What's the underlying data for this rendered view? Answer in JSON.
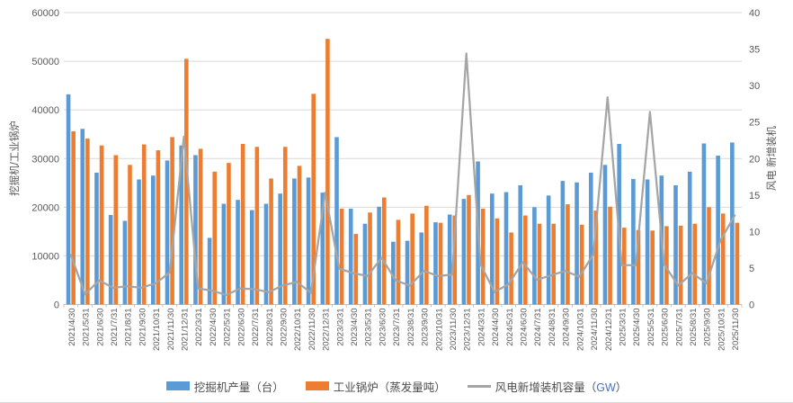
{
  "colors": {
    "excavator_blue": "#5B9BD5",
    "boiler_orange": "#ED7D31",
    "wind_gray": "#A5A5A5",
    "grid": "#D9D9D9",
    "axis_line": "#BFBFBF",
    "tick_text": "#595959",
    "legend_text": "#4d4d4d",
    "gw_blue": "#4472C4"
  },
  "legend": {
    "items": [
      {
        "label": "挖掘机产量（台）"
      },
      {
        "label": "工业锅炉（蒸发量吨）"
      },
      {
        "prefix": "风电新增装机容量（",
        "unit": "GW",
        "suffix": "）"
      }
    ]
  },
  "chart_data": {
    "type": "bar",
    "subtype": "combo bar+line, dual axis",
    "grid": true,
    "legend_position": "bottom",
    "categories": [
      "2021/4/30",
      "2021/5/31",
      "2021/6/30",
      "2021/7/31",
      "2021/8/31",
      "2021/9/30",
      "2021/10/31",
      "2021/11/30",
      "2021/12/31",
      "2022/3/31",
      "2022/4/30",
      "2022/5/31",
      "2022/6/30",
      "2022/7/31",
      "2022/8/31",
      "2022/9/30",
      "2022/10/31",
      "2022/11/30",
      "2022/12/31",
      "2023/3/31",
      "2023/4/30",
      "2023/5/31",
      "2023/6/30",
      "2023/7/31",
      "2023/8/31",
      "2023/9/30",
      "2023/10/31",
      "2023/11/30",
      "2023/12/31",
      "2024/3/31",
      "2024/4/30",
      "2024/5/31",
      "2024/6/30",
      "2024/7/31",
      "2024/8/31",
      "2024/9/30",
      "2024/10/31",
      "2024/11/30",
      "2024/12/31",
      "2025/3/31",
      "2025/4/30",
      "2025/5/31",
      "2025/6/30",
      "2025/7/31",
      "2025/8/31",
      "2025/9/30",
      "2025/10/31",
      "2025/11/30"
    ],
    "series": [
      {
        "name": "挖掘机产量（台）",
        "type": "bar",
        "axis": "left",
        "color": "#5B9BD5",
        "values": [
          43200,
          36100,
          27100,
          18400,
          17200,
          25700,
          26500,
          29600,
          32700,
          30700,
          13700,
          20700,
          21500,
          19400,
          20700,
          22800,
          25900,
          26100,
          23000,
          34400,
          19700,
          16600,
          20100,
          12900,
          13100,
          14800,
          16900,
          18500,
          21700,
          29400,
          22800,
          23100,
          24500,
          20000,
          22400,
          25400,
          25100,
          27100,
          28700,
          33000,
          25800,
          25700,
          26500,
          24500,
          27300,
          33100,
          30600,
          33300
        ]
      },
      {
        "name": "工业锅炉（蒸发量吨）",
        "type": "bar",
        "axis": "left",
        "color": "#ED7D31",
        "values": [
          35600,
          34100,
          32700,
          30700,
          28700,
          32900,
          31700,
          34400,
          50500,
          32000,
          27300,
          29100,
          33000,
          32400,
          25900,
          32400,
          28500,
          43300,
          54600,
          19700,
          14500,
          18900,
          22000,
          17400,
          18700,
          20300,
          16800,
          18300,
          22500,
          19700,
          17700,
          14800,
          18300,
          16600,
          16600,
          20600,
          16400,
          19300,
          20100,
          15800,
          15300,
          15200,
          16100,
          16200,
          16600,
          20000,
          18700,
          16800
        ]
      },
      {
        "name": "风电新增装机容量（GW）",
        "type": "line",
        "axis": "right",
        "color": "#A5A5A5",
        "values": [
          6.8,
          1.4,
          3.3,
          2.3,
          2.5,
          2.3,
          2.9,
          4.4,
          23.0,
          2.2,
          1.9,
          1.3,
          2.2,
          2.1,
          1.7,
          2.6,
          3.1,
          1.6,
          15.3,
          4.9,
          4.3,
          3.9,
          6.4,
          3.3,
          2.6,
          4.6,
          3.9,
          4.1,
          34.4,
          5.5,
          1.7,
          2.8,
          5.8,
          3.4,
          4.0,
          4.6,
          3.8,
          6.9,
          28.4,
          5.4,
          5.4,
          26.4,
          5.5,
          2.6,
          4.3,
          2.9,
          8.8,
          12.2
        ]
      }
    ],
    "left_axis": {
      "title": "挖掘机/工业锅炉",
      "min": 0,
      "max": 60000,
      "step": 10000,
      "ticks": [
        "0",
        "10000",
        "20000",
        "30000",
        "40000",
        "50000",
        "60000"
      ]
    },
    "right_axis": {
      "title": "风电 新增装机",
      "min": 0,
      "max": 40,
      "step": 5,
      "ticks": [
        "0",
        "5",
        "10",
        "15",
        "20",
        "25",
        "30",
        "35",
        "40"
      ]
    }
  }
}
